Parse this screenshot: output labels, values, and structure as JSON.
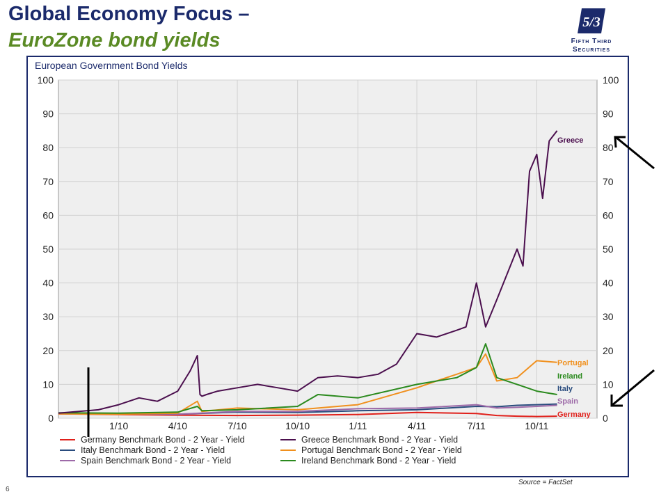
{
  "header": {
    "title_line1": "Global Economy Focus –",
    "title_line2": "EuroZone bond yields"
  },
  "logo": {
    "mark": "5/3",
    "line1": "Fifth Third",
    "line2": "Securities"
  },
  "footer": {
    "page_number": "6",
    "source": "Source = FactSet"
  },
  "colors": {
    "navy": "#1b2a6b",
    "green_title": "#5a8a24",
    "plot_bg": "#efefef"
  },
  "chart_data": {
    "type": "line",
    "title": "European Government Bond Yields",
    "xlabel": "",
    "ylabel": "",
    "ylim": [
      0,
      100
    ],
    "yticks": [
      0,
      10,
      20,
      30,
      40,
      50,
      60,
      70,
      80,
      90,
      100
    ],
    "x_tick_labels": [
      "1/10",
      "4/10",
      "7/10",
      "10/10",
      "1/11",
      "4/11",
      "7/11",
      "10/11"
    ],
    "x_tick_positions": [
      "2010-01",
      "2010-04",
      "2010-07",
      "2010-10",
      "2011-01",
      "2011-04",
      "2011-07",
      "2011-10"
    ],
    "x_range": [
      "2009-10",
      "2012-01"
    ],
    "grid": true,
    "legend_position": "bottom",
    "series": [
      {
        "name": "Germany Benchmark Bond - 2 Year - Yield",
        "end_label": "Germany",
        "color": "#e0201b",
        "x": [
          "2009-10",
          "2010-01",
          "2010-04",
          "2010-07",
          "2010-10",
          "2011-01",
          "2011-04",
          "2011-07",
          "2011-08",
          "2011-09",
          "2011-10",
          "2011-11"
        ],
        "y": [
          1.3,
          1.1,
          0.9,
          0.8,
          0.9,
          1.1,
          1.7,
          1.4,
          0.8,
          0.6,
          0.5,
          0.6
        ]
      },
      {
        "name": "Greece Benchmark Bond - 2 Year - Yield",
        "end_label": "Greece",
        "color": "#4b0f4e",
        "x": [
          "2009-10",
          "2009-12",
          "2010-01",
          "2010-02",
          "2010-03",
          "2010-04",
          "2010-04-20",
          "2010-05-01",
          "2010-05-05",
          "2010-05-08",
          "2010-05-15",
          "2010-06",
          "2010-07",
          "2010-08",
          "2010-09",
          "2010-10",
          "2010-11",
          "2010-12",
          "2011-01",
          "2011-02",
          "2011-03",
          "2011-04",
          "2011-05",
          "2011-06",
          "2011-06-15",
          "2011-07",
          "2011-07-15",
          "2011-08",
          "2011-09",
          "2011-09-10",
          "2011-09-20",
          "2011-10",
          "2011-10-10",
          "2011-10-20",
          "2011-11"
        ],
        "y": [
          1.5,
          2.5,
          4.0,
          6.0,
          5.0,
          8.0,
          14.0,
          18.5,
          7.0,
          6.5,
          7.0,
          8.0,
          9.0,
          10.0,
          9.0,
          8.0,
          12.0,
          12.5,
          12.0,
          13.0,
          16.0,
          25.0,
          24.0,
          26.0,
          27.0,
          40.0,
          27.0,
          35.0,
          50.0,
          45.0,
          73.0,
          78.0,
          65.0,
          82.0,
          85.0
        ]
      },
      {
        "name": "Italy Benchmark Bond - 2 Year - Yield",
        "end_label": "Italy",
        "color": "#2a4c7e",
        "x": [
          "2009-10",
          "2010-01",
          "2010-04",
          "2010-07",
          "2010-10",
          "2011-01",
          "2011-04",
          "2011-07",
          "2011-08",
          "2011-09",
          "2011-10",
          "2011-11"
        ],
        "y": [
          1.5,
          1.4,
          1.2,
          1.8,
          1.7,
          2.2,
          2.5,
          3.5,
          3.4,
          3.8,
          4.0,
          4.2
        ]
      },
      {
        "name": "Portugal Benchmark Bond - 2 Year - Yield",
        "end_label": "Portugal",
        "color": "#f0901e",
        "x": [
          "2009-10",
          "2010-01",
          "2010-04",
          "2010-05-01",
          "2010-05-08",
          "2010-07",
          "2010-10",
          "2011-01",
          "2011-04",
          "2011-05",
          "2011-06",
          "2011-07",
          "2011-07-15",
          "2011-08",
          "2011-09",
          "2011-10",
          "2011-11"
        ],
        "y": [
          1.3,
          1.2,
          1.5,
          5.0,
          2.0,
          3.0,
          2.5,
          4.0,
          9.0,
          11.0,
          13.0,
          15.0,
          19.0,
          11.0,
          12.0,
          17.0,
          16.5
        ]
      },
      {
        "name": "Spain Benchmark Bond - 2 Year - Yield",
        "end_label": "Spain",
        "color": "#9d6aa8",
        "x": [
          "2009-10",
          "2010-01",
          "2010-04",
          "2010-07",
          "2010-10",
          "2011-01",
          "2011-04",
          "2011-07",
          "2011-08",
          "2011-09",
          "2011-10",
          "2011-11"
        ],
        "y": [
          1.3,
          1.3,
          1.2,
          2.0,
          2.0,
          2.8,
          3.0,
          4.0,
          3.0,
          3.2,
          3.5,
          3.8
        ]
      },
      {
        "name": "Ireland Benchmark Bond - 2 Year - Yield",
        "end_label": "Ireland",
        "color": "#2b8a1e",
        "x": [
          "2009-10",
          "2010-01",
          "2010-04",
          "2010-05-01",
          "2010-05-08",
          "2010-07",
          "2010-10",
          "2010-11",
          "2011-01",
          "2011-04",
          "2011-06",
          "2011-07",
          "2011-07-15",
          "2011-08",
          "2011-09",
          "2011-10",
          "2011-11"
        ],
        "y": [
          1.6,
          1.5,
          1.8,
          3.5,
          2.2,
          2.5,
          3.5,
          7.0,
          6.0,
          10.0,
          12.0,
          15.0,
          22.0,
          12.0,
          10.0,
          8.0,
          7.0
        ]
      }
    ]
  }
}
